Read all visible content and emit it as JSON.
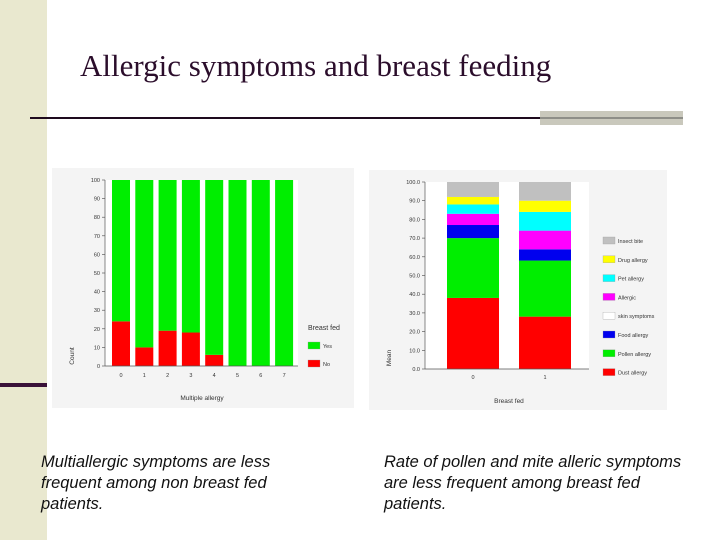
{
  "title": "Allergic symptoms and breast feeding",
  "captions": {
    "left": "Multiallergic symptoms are less frequent among non breast fed patients.",
    "right": "Rate of pollen and mite alleric symptoms  are less frequent among breast fed patients."
  },
  "colors": {
    "band": "#e9e8cf",
    "title": "#2b0d2b"
  },
  "chart_data": [
    {
      "type": "bar",
      "stacked": true,
      "categories": [
        "0",
        "1",
        "2",
        "3",
        "4",
        "5",
        "6",
        "7"
      ],
      "xlabel": "Multiple allergy",
      "ylabel": "Count",
      "ylim": [
        0,
        100
      ],
      "yticks": [
        "0",
        "10",
        "20",
        "30",
        "40",
        "50",
        "60",
        "70",
        "80",
        "90",
        "100"
      ],
      "legend_title": "Breast fed",
      "legend_position": "right",
      "series": [
        {
          "name": "No",
          "color": "#ff0000",
          "values": [
            24,
            10,
            19,
            18,
            6,
            0,
            0,
            0
          ]
        },
        {
          "name": "Yes",
          "color": "#00ee00",
          "values": [
            76,
            90,
            81,
            82,
            94,
            100,
            100,
            100
          ]
        }
      ]
    },
    {
      "type": "bar",
      "stacked": true,
      "categories": [
        "0",
        "1"
      ],
      "xlabel": "Breast fed",
      "ylabel": "Mean",
      "ylim": [
        0,
        100
      ],
      "yticks": [
        "0.0",
        "10.0",
        "20.0",
        "30.0",
        "40.0",
        "50.0",
        "60.0",
        "70.0",
        "80.0",
        "90.0",
        "100.0"
      ],
      "legend_position": "right",
      "series": [
        {
          "name": "Dust allergy",
          "color": "#ff0000",
          "values": [
            38,
            28
          ]
        },
        {
          "name": "Pollen allergy",
          "color": "#00ee00",
          "values": [
            32,
            30
          ]
        },
        {
          "name": "Food allergy",
          "color": "#0000ee",
          "values": [
            7,
            6
          ]
        },
        {
          "name": "skin symptoms",
          "color": "#ffffff",
          "values": [
            0,
            0
          ]
        },
        {
          "name": "Allergic",
          "color": "#ff00ff",
          "values": [
            6,
            10
          ]
        },
        {
          "name": "Pet allergy",
          "color": "#00ffff",
          "values": [
            5,
            10
          ]
        },
        {
          "name": "Drug allergy",
          "color": "#ffff00",
          "values": [
            4,
            6
          ]
        },
        {
          "name": "Insect bite",
          "color": "#c0c0c0",
          "values": [
            8,
            10
          ]
        }
      ]
    }
  ]
}
